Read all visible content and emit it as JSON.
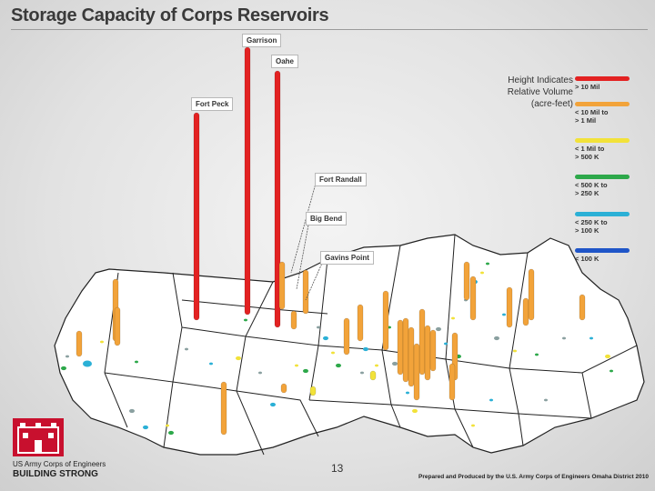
{
  "slide": {
    "title": "Storage Capacity of Corps Reservoirs",
    "page_number": "13",
    "credit": "Prepared and Produced by the U.S. Army Corps of Engineers Omaha District 2010"
  },
  "legend": {
    "title_lines": [
      "Height Indicates",
      "Relative Volume",
      "(acre-feet)"
    ],
    "classes": [
      {
        "label_lines": [
          "> 10 Mil"
        ],
        "color": "#e32222"
      },
      {
        "label_lines": [
          "< 10 Mil to",
          "> 1 Mil"
        ],
        "color": "#f2a33a"
      },
      {
        "label_lines": [
          "< 1 Mil to",
          "> 500 K"
        ],
        "color": "#f2e23a"
      },
      {
        "label_lines": [
          "< 500 K to",
          "> 250 K"
        ],
        "color": "#2da84a"
      },
      {
        "label_lines": [
          "< 250 K to",
          "> 100 K"
        ],
        "color": "#2bb0d6"
      },
      {
        "label_lines": [
          "< 100 K"
        ],
        "color": "#1f55c8"
      }
    ]
  },
  "reservoirs": [
    {
      "name": "Fort Peck",
      "class": 0
    },
    {
      "name": "Garrison",
      "class": 0
    },
    {
      "name": "Oahe",
      "class": 0
    },
    {
      "name": "Fort Randall",
      "class": 1
    },
    {
      "name": "Big Bend",
      "class": 1
    },
    {
      "name": "Gavins Point",
      "class": 1
    }
  ],
  "branding": {
    "org_name": "US Army Corps of Engineers",
    "motto": "BUILDING STRONG",
    "logo_icon": "castle-icon"
  }
}
